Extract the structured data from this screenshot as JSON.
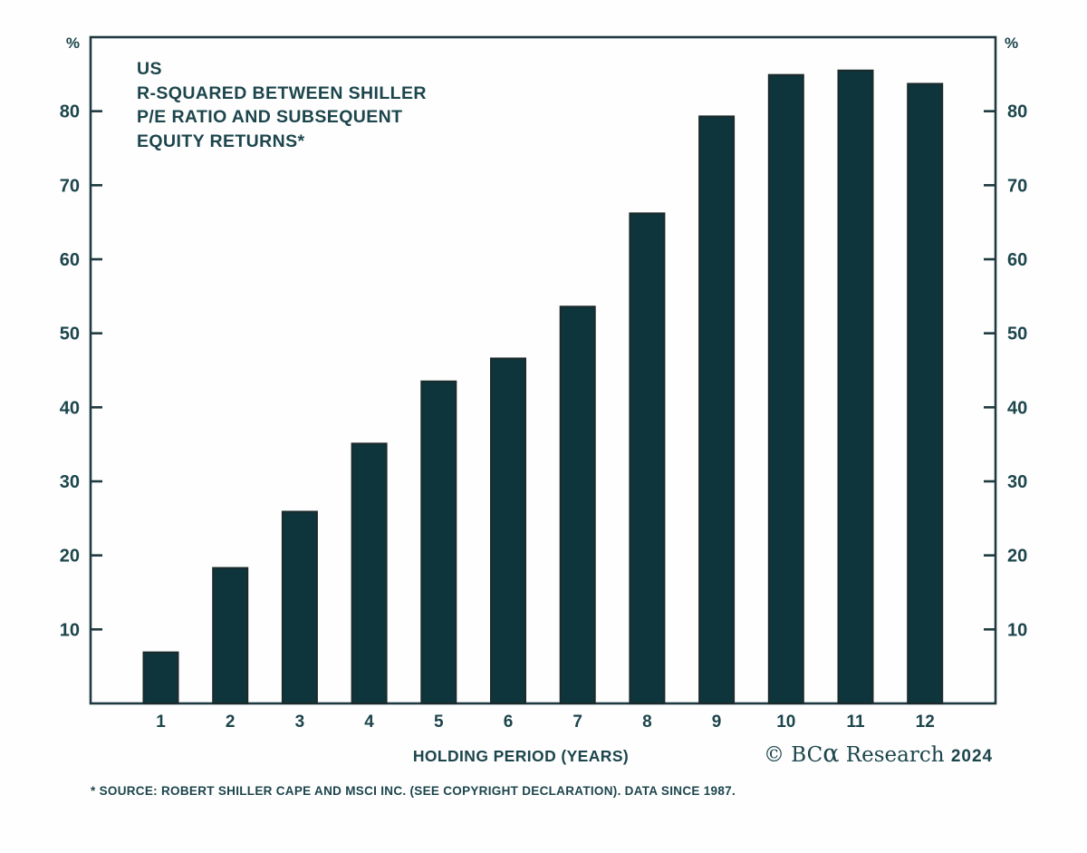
{
  "chart_data": {
    "type": "bar",
    "title_lines": [
      "US",
      "R-SQUARED BETWEEN SHILLER",
      "P/E RATIO AND SUBSEQUENT",
      "EQUITY RETURNS*"
    ],
    "categories": [
      "1",
      "2",
      "3",
      "4",
      "5",
      "6",
      "7",
      "8",
      "9",
      "10",
      "11",
      "12"
    ],
    "values": [
      6.9,
      18.3,
      25.9,
      35.1,
      43.5,
      46.6,
      53.6,
      66.2,
      79.3,
      84.9,
      85.5,
      83.7
    ],
    "xlabel": "HOLDING PERIOD (YEARS)",
    "y_unit": "%",
    "y_ticks": [
      10,
      20,
      30,
      40,
      50,
      60,
      70,
      80
    ],
    "ylim": [
      0,
      90
    ],
    "grid": false,
    "legend_position": "none",
    "colors": {
      "bar_fill": "#0e343c",
      "bar_stroke": "#1c2a2b",
      "axis": "#1e3a40",
      "text": "#1c454c"
    }
  },
  "footer": {
    "source_note": "* SOURCE: ROBERT SHILLER CAPE AND MSCI INC. (SEE COPYRIGHT DECLARATION). DATA SINCE 1987.",
    "logo": {
      "prefix": "© BC",
      "alpha": "α",
      "suffix": " Research ",
      "year": "2024"
    }
  }
}
